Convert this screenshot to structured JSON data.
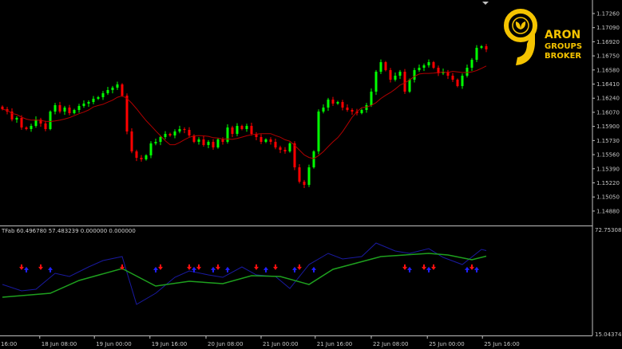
{
  "chart_data": {
    "type": "candlestick",
    "main": {
      "y_ticks": [
        "1.17260",
        "1.17090",
        "1.16920",
        "1.16750",
        "1.16580",
        "1.16410",
        "1.16240",
        "1.16070",
        "1.15900",
        "1.15730",
        "1.15560",
        "1.15390",
        "1.15220",
        "1.15050",
        "1.14880"
      ],
      "closes": [
        1.16108,
        1.16079,
        1.15983,
        1.16002,
        1.15887,
        1.15868,
        1.15906,
        1.15983,
        1.15935,
        1.15868,
        1.16079,
        1.16156,
        1.16079,
        1.16127,
        1.1606,
        1.16098,
        1.16146,
        1.16175,
        1.16194,
        1.16233,
        1.16252,
        1.163,
        1.16338,
        1.16367,
        1.16406,
        1.16271,
        1.15839,
        1.15599,
        1.15522,
        1.15503,
        1.15551,
        1.15695,
        1.15714,
        1.15772,
        1.1581,
        1.15791,
        1.15839,
        1.15868,
        1.15858,
        1.15791,
        1.15714,
        1.15743,
        1.15676,
        1.15714,
        1.15647,
        1.15743,
        1.15714,
        1.15887,
        1.1581,
        1.15906,
        1.15868,
        1.15906,
        1.1581,
        1.15772,
        1.15714,
        1.15743,
        1.15714,
        1.15647,
        1.15618,
        1.15599,
        1.15695,
        1.15407,
        1.15234,
        1.15196,
        1.15407,
        1.15599,
        1.16079,
        1.16127,
        1.16223,
        1.16175,
        1.16194,
        1.16127,
        1.16098,
        1.16079,
        1.1606,
        1.16098,
        1.16156,
        1.16319,
        1.16559,
        1.16674,
        1.16578,
        1.16463,
        1.16511,
        1.16559,
        1.16319,
        1.16463,
        1.16578,
        1.16607,
        1.16636,
        1.16674,
        1.16607,
        1.1654,
        1.16559,
        1.16511,
        1.16463,
        1.16386,
        1.16511,
        1.16607,
        1.16703,
        1.16847,
        1.16866,
        1.16828
      ],
      "up_color": "#00ff00",
      "down_color": "#ff0000",
      "ma_color": "#b00000",
      "ma_period": 10
    },
    "indicator": {
      "title": "TFab 60.496780 57.483239 0.000000 0.000000",
      "y_max_label": "72.753081",
      "y_min_label": "15.043741",
      "ylim": [
        15.043741,
        72.753081
      ],
      "blue": {
        "color": "#1a1aa0",
        "bars": [
          0,
          4,
          7,
          11,
          14,
          18,
          21,
          25,
          28,
          32,
          36,
          39,
          43,
          46,
          50,
          53,
          57,
          60,
          64,
          68,
          71,
          75,
          78,
          82,
          85,
          89,
          92,
          96,
          100,
          101
        ],
        "values": [
          42.17,
          38.73,
          39.59,
          48.2,
          46.48,
          51.65,
          55.09,
          57.25,
          31.4,
          37.43,
          46.05,
          49.49,
          47.34,
          46.05,
          51.65,
          47.34,
          46.48,
          40.02,
          52.94,
          58.97,
          55.96,
          57.25,
          64.57,
          60.26,
          58.97,
          61.55,
          56.82,
          52.94,
          61.12,
          60.5
        ]
      },
      "green": {
        "color": "#1ea01e",
        "bars": [
          0,
          10,
          16,
          25,
          32,
          39,
          46,
          52,
          58,
          64,
          69,
          79,
          89,
          93,
          98,
          101
        ],
        "values": [
          35.28,
          37.43,
          44.33,
          50.79,
          41.31,
          43.89,
          42.6,
          46.91,
          46.48,
          42.17,
          50.36,
          57.25,
          58.97,
          58.11,
          55.52,
          57.48
        ]
      },
      "sell_arrows": {
        "color": "#ff1010",
        "bars": [
          4,
          8,
          25,
          33,
          39,
          41,
          45,
          53,
          57,
          62,
          84,
          88,
          90,
          98
        ]
      },
      "buy_arrows": {
        "color": "#2020ff",
        "bars": [
          5,
          10,
          32,
          40,
          44,
          47,
          55,
          61,
          65,
          85,
          89,
          97,
          99
        ]
      },
      "arrow_level": 50.4
    },
    "x_ticks": [
      {
        "bar": 0,
        "label": "16:00"
      },
      {
        "bar": 7.8,
        "label": "18 Jun 08:00"
      },
      {
        "bar": 19.2,
        "label": "19 Jun 00:00"
      },
      {
        "bar": 30.8,
        "label": "19 Jun 16:00"
      },
      {
        "bar": 42.5,
        "label": "20 Jun 08:00"
      },
      {
        "bar": 54,
        "label": "21 Jun 00:00"
      },
      {
        "bar": 65.3,
        "label": "21 Jun 16:00"
      },
      {
        "bar": 77,
        "label": "22 Jun 08:00"
      },
      {
        "bar": 88.7,
        "label": "25 Jun 00:00"
      },
      {
        "bar": 100.2,
        "label": "25 Jun 16:00"
      }
    ]
  },
  "logo": {
    "numeral": "9",
    "line1": "ARON",
    "line2": "GROUPS",
    "line3": "BROKER",
    "color": "#f5c400"
  }
}
